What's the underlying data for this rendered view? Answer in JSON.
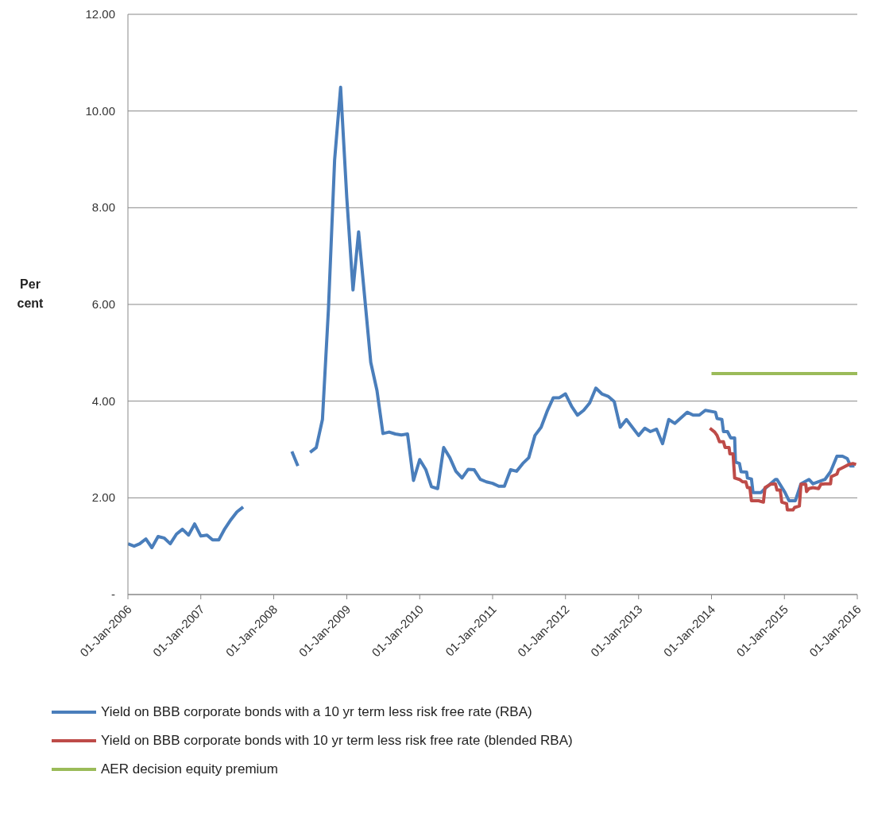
{
  "chart_data": {
    "type": "line",
    "ylabel": "Per cent",
    "xlim": [
      "2006-01-01",
      "2016-01-01"
    ],
    "ylim": [
      0,
      12
    ],
    "xticks": [
      {
        "value": "2006-01-01",
        "label": "01-Jan-2006"
      },
      {
        "value": "2007-01-01",
        "label": "01-Jan-2007"
      },
      {
        "value": "2008-01-01",
        "label": "01-Jan-2008"
      },
      {
        "value": "2009-01-01",
        "label": "01-Jan-2009"
      },
      {
        "value": "2010-01-01",
        "label": "01-Jan-2010"
      },
      {
        "value": "2011-01-01",
        "label": "01-Jan-2011"
      },
      {
        "value": "2012-01-01",
        "label": "01-Jan-2012"
      },
      {
        "value": "2013-01-01",
        "label": "01-Jan-2013"
      },
      {
        "value": "2014-01-01",
        "label": "01-Jan-2014"
      },
      {
        "value": "2015-01-01",
        "label": "01-Jan-2015"
      },
      {
        "value": "2016-01-01",
        "label": "01-Jan-2016"
      }
    ],
    "yticks": [
      {
        "value": 0,
        "label": "-"
      },
      {
        "value": 2,
        "label": "2.00"
      },
      {
        "value": 4,
        "label": "4.00"
      },
      {
        "value": 6,
        "label": "6.00"
      },
      {
        "value": 8,
        "label": "8.00"
      },
      {
        "value": 10,
        "label": "10.00"
      },
      {
        "value": 12,
        "label": "12.00"
      }
    ],
    "grid": "y",
    "legend": "bottom",
    "marker": "none",
    "line_style": "solid",
    "series": [
      {
        "name": "Yield on BBB corporate bonds with a 10 yr term less risk free rate (RBA)",
        "color": "#4a7ebb",
        "x": [
          "2006-01",
          "2006-02",
          "2006-03",
          "2006-04",
          "2006-05",
          "2006-06",
          "2006-07",
          "2006-08",
          "2006-09",
          "2006-10",
          "2006-11",
          "2006-12",
          "2007-01",
          "2007-02",
          "2007-03",
          "2007-04",
          "2007-05",
          "2007-06",
          "2007-07",
          "2007-08",
          "2007-09",
          "2008-04",
          "2008-05",
          "2008-06",
          "2008-07",
          "2008-08",
          "2008-09",
          "2008-10",
          "2008-11",
          "2008-12",
          "2009-01",
          "2009-02",
          "2009-03",
          "2009-05",
          "2009-06",
          "2009-07",
          "2009-08",
          "2009-09",
          "2009-10",
          "2009-11",
          "2009-12",
          "2010-01",
          "2010-02",
          "2010-03",
          "2010-04",
          "2010-05",
          "2010-06",
          "2010-07",
          "2010-08",
          "2010-09",
          "2010-10",
          "2010-11",
          "2010-12",
          "2011-01",
          "2011-02",
          "2011-03",
          "2011-04",
          "2011-05",
          "2011-06",
          "2011-07",
          "2011-08",
          "2011-09",
          "2011-10",
          "2011-11",
          "2011-12",
          "2012-01",
          "2012-02",
          "2012-03",
          "2012-04",
          "2012-05",
          "2012-06",
          "2012-07",
          "2012-08",
          "2012-09",
          "2012-10",
          "2012-11",
          "2013-01",
          "2013-02",
          "2013-03",
          "2013-04",
          "2013-05",
          "2013-06",
          "2013-07",
          "2013-09",
          "2013-10",
          "2013-11",
          "2013-12",
          "2014-01-21",
          "2014-01-29",
          "2014-02-22",
          "2014-03-02",
          "2014-03-22",
          "2014-04-07",
          "2014-04-27",
          "2014-05-01",
          "2014-05-21",
          "2014-05-29",
          "2014-06-26",
          "2014-06-30",
          "2014-07-20",
          "2014-07-28",
          "2014-09-06",
          "2014-09-26",
          "2014-11-17",
          "2014-11-25",
          "2015-01-04",
          "2015-01-24",
          "2015-02-25",
          "2015-03-25",
          "2015-05-04",
          "2015-05-24",
          "2015-07-23",
          "2015-08-20",
          "2015-09-21",
          "2015-10-19",
          "2015-11-12",
          "2015-11-28",
          "2015-12-18"
        ],
        "values": [
          1.05,
          1.0,
          1.05,
          1.15,
          0.97,
          1.2,
          1.17,
          1.05,
          1.25,
          1.35,
          1.23,
          1.46,
          1.21,
          1.23,
          1.13,
          1.13,
          1.36,
          1.55,
          1.71,
          1.81,
          null,
          2.96,
          2.66,
          null,
          2.94,
          3.04,
          3.62,
          5.9,
          8.99,
          10.49,
          8.2,
          6.3,
          7.5,
          4.8,
          4.22,
          3.33,
          3.36,
          3.32,
          3.3,
          3.32,
          2.36,
          2.79,
          2.58,
          2.23,
          2.19,
          3.04,
          2.83,
          2.55,
          2.41,
          2.59,
          2.58,
          2.38,
          2.33,
          2.3,
          2.24,
          2.24,
          2.58,
          2.55,
          2.71,
          2.83,
          3.29,
          3.46,
          3.79,
          4.07,
          4.07,
          4.15,
          3.89,
          3.71,
          3.81,
          3.96,
          4.27,
          4.15,
          4.1,
          3.99,
          3.46,
          3.62,
          3.29,
          3.44,
          3.37,
          3.42,
          3.12,
          3.62,
          3.54,
          3.77,
          3.71,
          3.71,
          3.81,
          3.77,
          3.64,
          3.62,
          3.37,
          3.37,
          3.24,
          3.24,
          2.74,
          2.71,
          2.54,
          2.53,
          2.41,
          2.39,
          2.11,
          2.11,
          2.19,
          2.38,
          2.38,
          2.11,
          1.94,
          1.94,
          2.29,
          2.38,
          2.29,
          2.38,
          2.54,
          2.86,
          2.86,
          2.81,
          2.66,
          2.66
        ]
      },
      {
        "name": "Yield on BBB corporate bonds with 10 yr term less risk free rate (blended RBA)",
        "color": "#be4b48",
        "x": [
          "2013-12-24",
          "2014-01-17",
          "2014-01-29",
          "2014-02-10",
          "2014-03-02",
          "2014-03-10",
          "2014-03-30",
          "2014-04-03",
          "2014-04-19",
          "2014-04-27",
          "2014-05-21",
          "2014-06-06",
          "2014-06-22",
          "2014-06-30",
          "2014-07-12",
          "2014-07-20",
          "2014-08-25",
          "2014-09-18",
          "2014-09-26",
          "2014-10-24",
          "2014-11-17",
          "2014-11-25",
          "2014-12-11",
          "2014-12-19",
          "2015-01-12",
          "2015-01-16",
          "2015-02-13",
          "2015-02-21",
          "2015-03-17",
          "2015-03-25",
          "2015-04-18",
          "2015-04-22",
          "2015-05-04",
          "2015-05-24",
          "2015-06-21",
          "2015-07-03",
          "2015-07-23",
          "2015-08-20",
          "2015-08-24",
          "2015-09-21",
          "2015-09-29",
          "2015-10-23",
          "2015-11-20",
          "2015-12-10",
          "2015-12-26"
        ],
        "values": [
          3.44,
          3.36,
          3.29,
          3.16,
          3.16,
          3.04,
          3.04,
          2.91,
          2.91,
          2.41,
          2.38,
          2.33,
          2.33,
          2.21,
          2.21,
          1.94,
          1.94,
          1.91,
          2.21,
          2.28,
          2.29,
          2.16,
          2.16,
          1.91,
          1.88,
          1.75,
          1.75,
          1.8,
          1.83,
          2.28,
          2.28,
          2.13,
          2.19,
          2.21,
          2.19,
          2.28,
          2.29,
          2.29,
          2.44,
          2.49,
          2.58,
          2.63,
          2.69,
          2.71,
          2.69
        ]
      },
      {
        "name": "AER decision equity premium",
        "color": "#9bbb59",
        "x": [
          "2014-01-01",
          "2016-01-01"
        ],
        "values": [
          4.57,
          4.57
        ]
      }
    ]
  }
}
